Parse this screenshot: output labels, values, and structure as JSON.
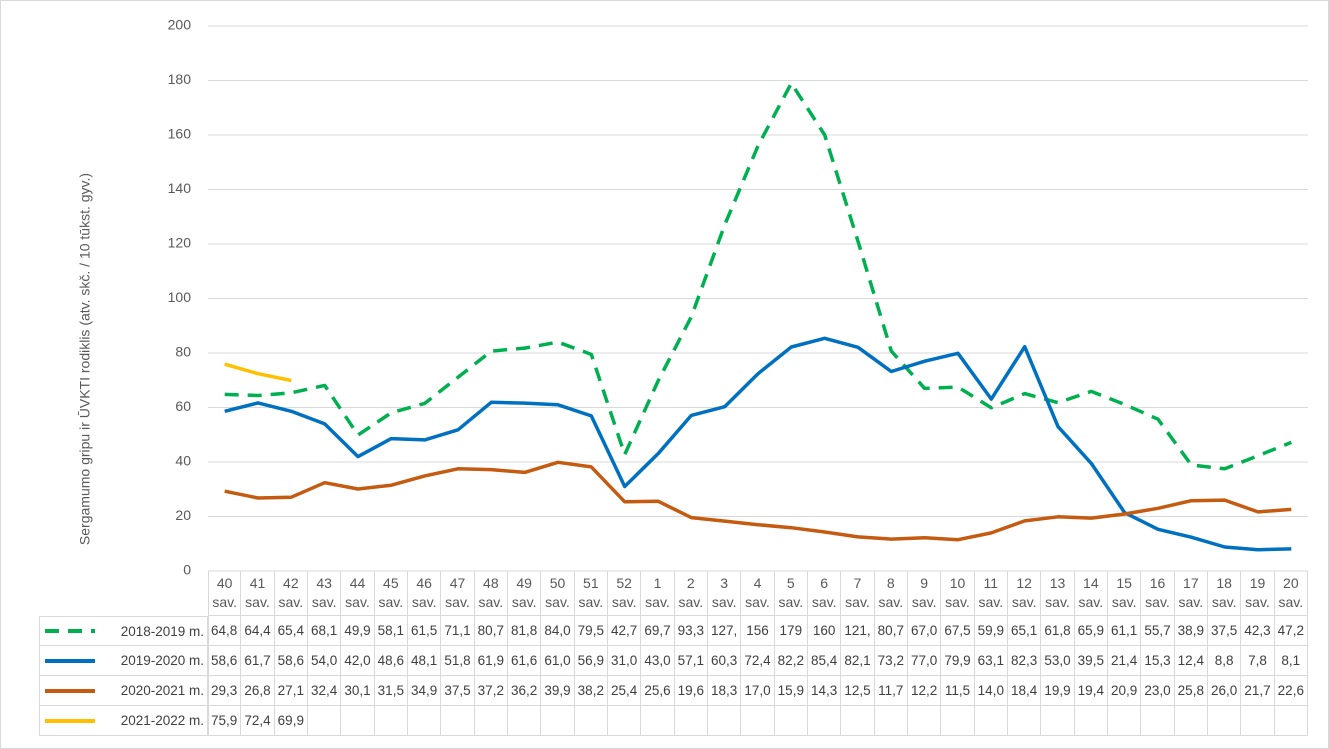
{
  "chart_data": {
    "type": "line",
    "y_axis_label": "Sergamumo gripu ir ŪVKTI rodiklis (atv. skč. / 10 tūkst. gyv.)",
    "categories": [
      "40 sav.",
      "41 sav.",
      "42 sav.",
      "43 sav.",
      "44 sav.",
      "45 sav.",
      "46 sav.",
      "47 sav.",
      "48 sav.",
      "49 sav.",
      "50 sav.",
      "51 sav.",
      "52 sav.",
      "1 sav.",
      "2 sav.",
      "3 sav.",
      "4 sav.",
      "5 sav.",
      "6 sav.",
      "7 sav.",
      "8 sav.",
      "9 sav.",
      "10 sav.",
      "11 sav.",
      "12 sav.",
      "13 sav.",
      "14 sav.",
      "15 sav.",
      "16 sav.",
      "17 sav.",
      "18 sav.",
      "19 sav.",
      "20 sav."
    ],
    "ylim": [
      0,
      200
    ],
    "yticks": [
      0,
      20,
      40,
      60,
      80,
      100,
      120,
      140,
      160,
      180,
      200
    ],
    "grid": true,
    "series": [
      {
        "name": "2018-2019 m.",
        "color": "#00b050",
        "dashed": true,
        "values": [
          64.8,
          64.4,
          65.4,
          68.1,
          49.9,
          58.1,
          61.5,
          71.1,
          80.7,
          81.8,
          84.0,
          79.5,
          42.7,
          69.7,
          93.3,
          127,
          156,
          179,
          160,
          121,
          80.7,
          67.0,
          67.5,
          59.9,
          65.1,
          61.8,
          65.9,
          61.1,
          55.7,
          38.9,
          37.5,
          42.3,
          47.2
        ],
        "value_labels": [
          "64,8",
          "64,4",
          "65,4",
          "68,1",
          "49,9",
          "58,1",
          "61,5",
          "71,1",
          "80,7",
          "81,8",
          "84,0",
          "79,5",
          "42,7",
          "69,7",
          "93,3",
          "127,",
          "156",
          "179",
          "160",
          "121,",
          "80,7",
          "67,0",
          "67,5",
          "59,9",
          "65,1",
          "61,8",
          "65,9",
          "61,1",
          "55,7",
          "38,9",
          "37,5",
          "42,3",
          "47,2"
        ]
      },
      {
        "name": "2019-2020 m.",
        "color": "#0070c0",
        "dashed": false,
        "values": [
          58.6,
          61.7,
          58.6,
          54.0,
          42.0,
          48.6,
          48.1,
          51.8,
          61.9,
          61.6,
          61.0,
          56.9,
          31.0,
          43.0,
          57.1,
          60.3,
          72.4,
          82.2,
          85.4,
          82.1,
          73.2,
          77.0,
          79.9,
          63.1,
          82.3,
          53.0,
          39.5,
          21.4,
          15.3,
          12.4,
          8.8,
          7.8,
          8.1
        ],
        "value_labels": [
          "58,6",
          "61,7",
          "58,6",
          "54,0",
          "42,0",
          "48,6",
          "48,1",
          "51,8",
          "61,9",
          "61,6",
          "61,0",
          "56,9",
          "31,0",
          "43,0",
          "57,1",
          "60,3",
          "72,4",
          "82,2",
          "85,4",
          "82,1",
          "73,2",
          "77,0",
          "79,9",
          "63,1",
          "82,3",
          "53,0",
          "39,5",
          "21,4",
          "15,3",
          "12,4",
          "8,8",
          "7,8",
          "8,1"
        ]
      },
      {
        "name": "2020-2021 m.",
        "color": "#c55a11",
        "dashed": false,
        "values": [
          29.3,
          26.8,
          27.1,
          32.4,
          30.1,
          31.5,
          34.9,
          37.5,
          37.2,
          36.2,
          39.9,
          38.2,
          25.4,
          25.6,
          19.6,
          18.3,
          17.0,
          15.9,
          14.3,
          12.5,
          11.7,
          12.2,
          11.5,
          14.0,
          18.4,
          19.9,
          19.4,
          20.9,
          23.0,
          25.8,
          26.0,
          21.7,
          22.6
        ],
        "value_labels": [
          "29,3",
          "26,8",
          "27,1",
          "32,4",
          "30,1",
          "31,5",
          "34,9",
          "37,5",
          "37,2",
          "36,2",
          "39,9",
          "38,2",
          "25,4",
          "25,6",
          "19,6",
          "18,3",
          "17,0",
          "15,9",
          "14,3",
          "12,5",
          "11,7",
          "12,2",
          "11,5",
          "14,0",
          "18,4",
          "19,9",
          "19,4",
          "20,9",
          "23,0",
          "25,8",
          "26,0",
          "21,7",
          "22,6"
        ]
      },
      {
        "name": "2021-2022 m.",
        "color": "#ffc000",
        "dashed": false,
        "values": [
          75.9,
          72.4,
          69.9,
          null,
          null,
          null,
          null,
          null,
          null,
          null,
          null,
          null,
          null,
          null,
          null,
          null,
          null,
          null,
          null,
          null,
          null,
          null,
          null,
          null,
          null,
          null,
          null,
          null,
          null,
          null,
          null,
          null,
          null
        ],
        "value_labels": [
          "75,9",
          "72,4",
          "69,9",
          null,
          null,
          null,
          null,
          null,
          null,
          null,
          null,
          null,
          null,
          null,
          null,
          null,
          null,
          null,
          null,
          null,
          null,
          null,
          null,
          null,
          null,
          null,
          null,
          null,
          null,
          null,
          null,
          null,
          null
        ]
      }
    ]
  }
}
